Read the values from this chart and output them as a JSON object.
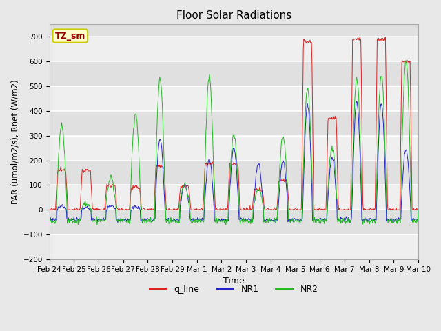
{
  "title": "Floor Solar Radiations",
  "xlabel": "Time",
  "ylabel": "PAR (umol/m2/s), Rnet (W/m2)",
  "ylim": [
    -200,
    750
  ],
  "yticks": [
    -200,
    -100,
    0,
    100,
    200,
    300,
    400,
    500,
    600,
    700
  ],
  "annotation_text": "TZ_sm",
  "annotation_box_facecolor": "#ffffcc",
  "annotation_box_edgecolor": "#cccc00",
  "annotation_text_color": "#990000",
  "legend_labels": [
    "q_line",
    "NR1",
    "NR2"
  ],
  "line_colors": [
    "#dd2222",
    "#2222cc",
    "#22bb22"
  ],
  "background_color": "#e8e8e8",
  "plot_bg_color": "#e0e0e0",
  "grid_color": "#ffffff",
  "xtick_labels": [
    "Feb 24",
    "Feb 25",
    "Feb 26",
    "Feb 27",
    "Feb 28",
    "Feb 29",
    "Mar 1",
    "Mar 2",
    "Mar 3",
    "Mar 4",
    "Mar 5",
    "Mar 6",
    "Mar 7",
    "Mar 8",
    "Mar 9",
    "Mar 10"
  ],
  "n_days": 15
}
